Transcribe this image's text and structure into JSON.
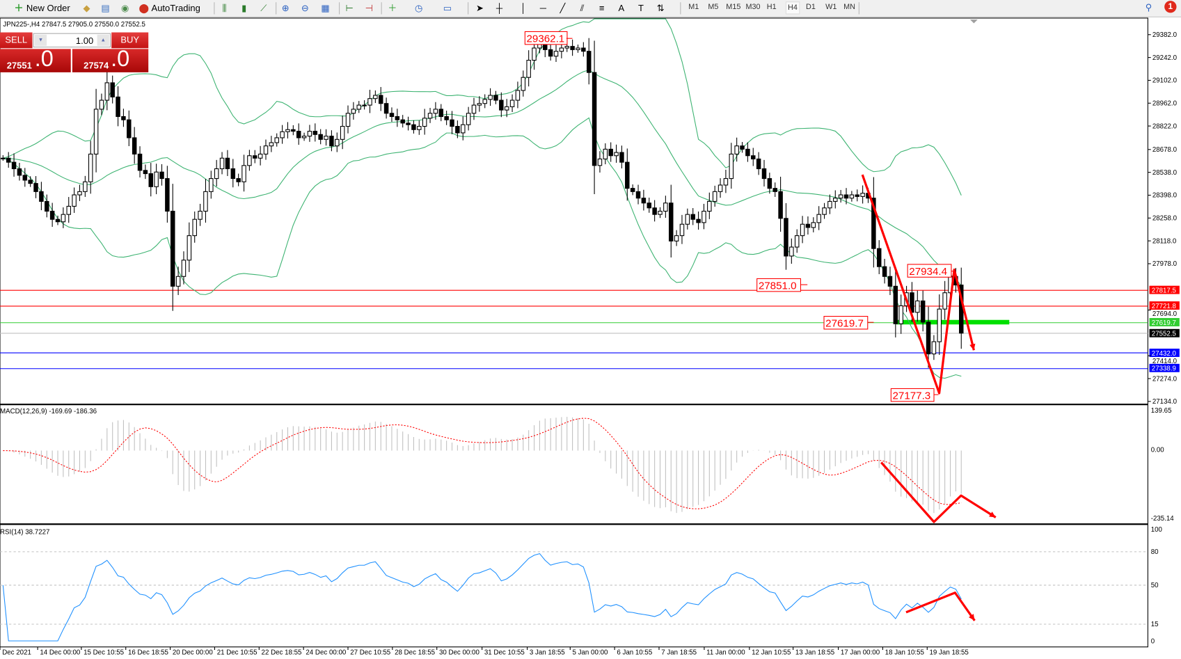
{
  "toolbar": {
    "new_order": "New Order",
    "autotrading": "AutoTrading",
    "timeframes": [
      "M1",
      "M5",
      "M15",
      "M30",
      "H1",
      "H4",
      "D1",
      "W1",
      "MN"
    ],
    "active_timeframe": "H4",
    "notification_count": "1"
  },
  "chart": {
    "header": "JPN225-,H4  27847.5 27905.0 27550.0 27552.5",
    "symbol": "JPN225-",
    "timeframe": "H4"
  },
  "trade_panel": {
    "sell_label": "SELL",
    "buy_label": "BUY",
    "lot": "1.00",
    "sell_price_main": "27551",
    "sell_price_frac": ".0",
    "buy_price_main": "27574",
    "buy_price_frac": ".0",
    "color": "#cc1a1a"
  },
  "chart_data": {
    "type": "candlestick",
    "price_axis": {
      "ylim": [
        27134.0,
        29382.0
      ],
      "ticks": [
        "29382.0",
        "29242.0",
        "29102.0",
        "28962.0",
        "28822.0",
        "28678.0",
        "28538.0",
        "28398.0",
        "28258.0",
        "28118.0",
        "27978.0",
        "27694.0",
        "27414.0",
        "27274.0",
        "27134.0"
      ]
    },
    "closes": [
      28625,
      28600,
      28560,
      28520,
      28490,
      28470,
      28420,
      28360,
      28300,
      28250,
      28235,
      28280,
      28330,
      28400,
      28420,
      28480,
      28650,
      28925,
      28980,
      29087,
      29000,
      28880,
      28860,
      28750,
      28650,
      28550,
      28530,
      28450,
      28540,
      28500,
      28300,
      27840,
      27900,
      28000,
      28150,
      28250,
      28300,
      28420,
      28500,
      28560,
      28625,
      28560,
      28500,
      28480,
      28580,
      28640,
      28625,
      28650,
      28700,
      28720,
      28750,
      28787,
      28800,
      28790,
      28750,
      28760,
      28790,
      28770,
      28740,
      28760,
      28700,
      28740,
      28820,
      28900,
      28925,
      28950,
      28950,
      28990,
      29010,
      28960,
      28900,
      28880,
      28860,
      28840,
      28830,
      28800,
      28820,
      28870,
      28900,
      28925,
      28880,
      28860,
      28820,
      28780,
      28830,
      28900,
      28950,
      28960,
      28985,
      29010,
      28980,
      28920,
      28940,
      28980,
      29040,
      29120,
      29225,
      29300,
      29340,
      29290,
      29250,
      29280,
      29300,
      29310,
      29290,
      29300,
      29280,
      29150,
      28580,
      28620,
      28680,
      28640,
      28660,
      28600,
      28440,
      28420,
      28380,
      28350,
      28320,
      28280,
      28300,
      28350,
      28117,
      28150,
      28220,
      28280,
      28250,
      28230,
      28300,
      28360,
      28420,
      28460,
      28500,
      28650,
      28700,
      28680,
      28640,
      28620,
      28560,
      28500,
      28440,
      28420,
      28256,
      28025,
      28080,
      28150,
      28220,
      28200,
      28230,
      28280,
      28320,
      28360,
      28380,
      28400,
      28380,
      28400,
      28390,
      28410,
      28380,
      28071,
      27960,
      27900,
      27840,
      27610,
      27720,
      27800,
      27680,
      27750,
      27620,
      27425,
      27500,
      27700,
      27800,
      27900,
      27847.5,
      27552.5
    ],
    "bollinger": {
      "period": 20,
      "deviation": 2,
      "color": "#3cb371"
    },
    "levels": [
      {
        "price": "27817.5",
        "color": "#ff0000"
      },
      {
        "price": "27721.8",
        "color": "#ff0000"
      },
      {
        "price": "27619.7",
        "color": "#32cd32"
      },
      {
        "price": "27552.5",
        "color": "#000000",
        "line_color": "#c0c0c0"
      },
      {
        "price": "27432.0",
        "color": "#0000ff"
      },
      {
        "price": "27338.9",
        "color": "#0000ff"
      }
    ],
    "price_labels": [
      "29362.1",
      "27851.0",
      "27934.4",
      "27619.7",
      "27177.3"
    ],
    "annotation_color": "#ff0000",
    "x_ticks": [
      "Dec 2021",
      "14 Dec 00:00",
      "15 Dec 10:55",
      "16 Dec 18:55",
      "20 Dec 00:00",
      "21 Dec 10:55",
      "22 Dec 18:55",
      "24 Dec 00:00",
      "27 Dec 10:55",
      "28 Dec 18:55",
      "30 Dec 00:00",
      "31 Dec 10:55",
      "3 Jan 18:55",
      "5 Jan 00:00",
      "6 Jan 10:55",
      "7 Jan 18:55",
      "11 Jan 00:00",
      "12 Jan 10:55",
      "13 Jan 18:55",
      "17 Jan 00:00",
      "18 Jan 10:55",
      "19 Jan 18:55"
    ]
  },
  "macd": {
    "label": "MACD(12,26,9) -169.69 -186.36",
    "ticks": [
      "139.65",
      "0.00",
      "-235.14"
    ],
    "ylim": [
      -235.14,
      139.65
    ],
    "histogram_color": "#c0c0c0",
    "signal_color": "#ff0000"
  },
  "rsi": {
    "label": "RSI(14) 38.7227",
    "ticks": [
      "100",
      "80",
      "50",
      "15",
      "0"
    ],
    "levels": [
      80,
      50,
      15
    ],
    "color": "#1e90ff"
  }
}
